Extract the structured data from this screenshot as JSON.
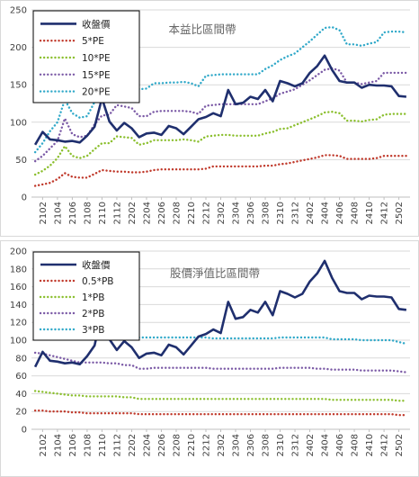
{
  "charts": [
    {
      "type": "line",
      "title": "本益比區間帶",
      "ylim": [
        0,
        250
      ],
      "yticks": [
        0,
        50,
        100,
        150,
        200,
        250
      ],
      "xticks": [
        "2102",
        "2104",
        "2106",
        "2108",
        "2110",
        "2112",
        "2202",
        "2204",
        "2206",
        "2208",
        "2210",
        "2212",
        "2302",
        "2304",
        "2306",
        "2308",
        "2310",
        "2312",
        "2402",
        "2404",
        "2406",
        "2408",
        "2410",
        "2412",
        "2502"
      ],
      "grid": true,
      "legend_position": "top-left",
      "x": [
        "2101",
        "2102",
        "2103",
        "2104",
        "2105",
        "2106",
        "2107",
        "2108",
        "2109",
        "2110",
        "2111",
        "2112",
        "2201",
        "2202",
        "2203",
        "2204",
        "2205",
        "2206",
        "2207",
        "2208",
        "2209",
        "2210",
        "2211",
        "2212",
        "2301",
        "2302",
        "2303",
        "2304",
        "2305",
        "2306",
        "2307",
        "2308",
        "2309",
        "2310",
        "2311",
        "2312",
        "2401",
        "2402",
        "2403",
        "2404",
        "2405",
        "2406",
        "2407",
        "2408",
        "2409",
        "2410",
        "2411",
        "2412",
        "2501",
        "2502",
        "2503"
      ],
      "series": [
        {
          "name": "收盤價",
          "color": "#1f2f6e",
          "style": "solid",
          "values": [
            70,
            87,
            77,
            76,
            74,
            75,
            73,
            82,
            94,
            132,
            101,
            89,
            99,
            92,
            80,
            85,
            86,
            83,
            95,
            92,
            84,
            94,
            104,
            107,
            112,
            108,
            143,
            124,
            126,
            134,
            131,
            143,
            128,
            155,
            152,
            148,
            152,
            166,
            175,
            189,
            170,
            155,
            153,
            153,
            146,
            150,
            149,
            149,
            148,
            135,
            134
          ]
        },
        {
          "name": "5*PE",
          "color": "#c0392b",
          "style": "dotted",
          "values": [
            15,
            17,
            19,
            24,
            32,
            27,
            26,
            26,
            31,
            36,
            35,
            34,
            34,
            33,
            33,
            34,
            36,
            37,
            37,
            37,
            37,
            37,
            37,
            38,
            41,
            41,
            41,
            41,
            41,
            41,
            41,
            42,
            42,
            44,
            45,
            47,
            49,
            51,
            53,
            56,
            56,
            55,
            51,
            51,
            51,
            51,
            52,
            55,
            55,
            55,
            55
          ]
        },
        {
          "name": "10*PE",
          "color": "#8bbf2e",
          "style": "dotted",
          "values": [
            30,
            35,
            42,
            52,
            68,
            55,
            52,
            55,
            64,
            72,
            72,
            81,
            80,
            79,
            70,
            72,
            76,
            76,
            76,
            76,
            77,
            76,
            74,
            81,
            82,
            83,
            83,
            82,
            82,
            82,
            82,
            85,
            87,
            91,
            92,
            96,
            100,
            104,
            108,
            113,
            114,
            112,
            102,
            102,
            101,
            103,
            104,
            110,
            111,
            111,
            111
          ]
        },
        {
          "name": "15*PE",
          "color": "#7b5aa6",
          "style": "dotted",
          "values": [
            48,
            55,
            65,
            75,
            105,
            84,
            80,
            82,
            97,
            109,
            110,
            123,
            121,
            119,
            108,
            108,
            114,
            115,
            115,
            115,
            115,
            114,
            111,
            122,
            123,
            124,
            124,
            124,
            124,
            124,
            124,
            128,
            132,
            138,
            141,
            144,
            150,
            156,
            163,
            170,
            172,
            169,
            153,
            153,
            151,
            153,
            155,
            166,
            166,
            166,
            166
          ]
        },
        {
          "name": "20*PE",
          "color": "#31a9c9",
          "style": "dotted",
          "values": [
            60,
            72,
            88,
            100,
            130,
            112,
            106,
            108,
            127,
            145,
            146,
            162,
            160,
            158,
            144,
            145,
            152,
            152,
            153,
            153,
            154,
            152,
            148,
            162,
            163,
            164,
            164,
            164,
            164,
            164,
            164,
            171,
            176,
            183,
            188,
            192,
            200,
            208,
            217,
            226,
            227,
            223,
            204,
            204,
            202,
            205,
            207,
            220,
            221,
            221,
            220
          ]
        }
      ]
    },
    {
      "type": "line",
      "title": "股價淨值比區間帶",
      "ylim": [
        0,
        200
      ],
      "yticks": [
        0,
        20,
        40,
        60,
        80,
        100,
        120,
        140,
        160,
        180,
        200
      ],
      "xticks": [
        "2102",
        "2104",
        "2106",
        "2108",
        "2110",
        "2112",
        "2202",
        "2204",
        "2206",
        "2208",
        "2210",
        "2212",
        "2302",
        "2304",
        "2306",
        "2308",
        "2310",
        "2312",
        "2402",
        "2404",
        "2406",
        "2408",
        "2410",
        "2412",
        "2502"
      ],
      "grid": true,
      "legend_position": "top-left",
      "x": [
        "2101",
        "2102",
        "2103",
        "2104",
        "2105",
        "2106",
        "2107",
        "2108",
        "2109",
        "2110",
        "2111",
        "2112",
        "2201",
        "2202",
        "2203",
        "2204",
        "2205",
        "2206",
        "2207",
        "2208",
        "2209",
        "2210",
        "2211",
        "2212",
        "2301",
        "2302",
        "2303",
        "2304",
        "2305",
        "2306",
        "2307",
        "2308",
        "2309",
        "2310",
        "2311",
        "2312",
        "2401",
        "2402",
        "2403",
        "2404",
        "2405",
        "2406",
        "2407",
        "2408",
        "2409",
        "2410",
        "2411",
        "2412",
        "2501",
        "2502",
        "2503"
      ],
      "series": [
        {
          "name": "收盤價",
          "color": "#1f2f6e",
          "style": "solid",
          "values": [
            70,
            87,
            77,
            76,
            74,
            75,
            73,
            82,
            94,
            132,
            101,
            89,
            99,
            92,
            80,
            85,
            86,
            83,
            95,
            92,
            84,
            94,
            104,
            107,
            112,
            108,
            143,
            124,
            126,
            134,
            131,
            143,
            128,
            155,
            152,
            148,
            152,
            166,
            175,
            189,
            170,
            155,
            153,
            153,
            146,
            150,
            149,
            149,
            148,
            135,
            134
          ]
        },
        {
          "name": "0.5*PB",
          "color": "#c0392b",
          "style": "dotted",
          "values": [
            21,
            21,
            20,
            20,
            20,
            19,
            19,
            18,
            18,
            18,
            18,
            18,
            18,
            18,
            17,
            17,
            17,
            17,
            17,
            17,
            17,
            17,
            17,
            17,
            17,
            17,
            17,
            17,
            17,
            17,
            17,
            17,
            17,
            17,
            17,
            17,
            17,
            17,
            17,
            17,
            17,
            17,
            17,
            17,
            17,
            17,
            17,
            17,
            17,
            16,
            16
          ]
        },
        {
          "name": "1*PB",
          "color": "#8bbf2e",
          "style": "dotted",
          "values": [
            43,
            42,
            41,
            40,
            39,
            38,
            38,
            37,
            37,
            37,
            37,
            37,
            36,
            36,
            34,
            34,
            34,
            34,
            34,
            34,
            34,
            34,
            34,
            34,
            34,
            34,
            34,
            34,
            34,
            34,
            34,
            34,
            34,
            34,
            34,
            34,
            34,
            34,
            34,
            34,
            33,
            33,
            33,
            33,
            33,
            33,
            33,
            33,
            33,
            32,
            32
          ]
        },
        {
          "name": "2*PB",
          "color": "#7b5aa6",
          "style": "dotted",
          "values": [
            86,
            85,
            83,
            81,
            79,
            77,
            75,
            75,
            75,
            75,
            74,
            74,
            72,
            72,
            68,
            68,
            69,
            69,
            69,
            69,
            69,
            69,
            69,
            69,
            68,
            68,
            68,
            68,
            68,
            68,
            68,
            68,
            68,
            69,
            69,
            69,
            69,
            69,
            68,
            68,
            67,
            67,
            67,
            67,
            66,
            66,
            66,
            66,
            66,
            65,
            64
          ]
        },
        {
          "name": "3*PB",
          "color": "#31a9c9",
          "style": "dotted",
          "values": [
            122,
            121,
            119,
            117,
            116,
            114,
            113,
            113,
            113,
            112,
            112,
            112,
            109,
            109,
            103,
            103,
            103,
            103,
            103,
            103,
            103,
            103,
            103,
            103,
            102,
            102,
            102,
            102,
            102,
            102,
            102,
            102,
            102,
            103,
            103,
            103,
            103,
            103,
            103,
            103,
            101,
            101,
            101,
            101,
            100,
            100,
            100,
            100,
            100,
            98,
            96
          ]
        }
      ]
    }
  ]
}
